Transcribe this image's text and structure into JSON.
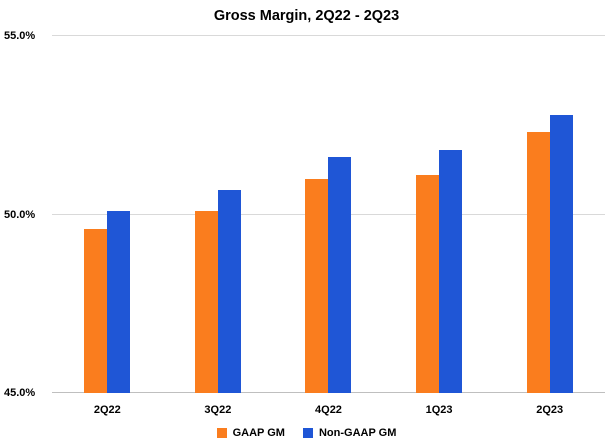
{
  "chart_data": {
    "type": "bar",
    "title": "Gross Margin, 2Q22 - 2Q23",
    "categories": [
      "2Q22",
      "3Q22",
      "4Q22",
      "1Q23",
      "2Q23"
    ],
    "series": [
      {
        "name": "GAAP GM",
        "color": "#FA7D1E",
        "values": [
          49.6,
          50.1,
          51.0,
          51.1,
          52.3
        ]
      },
      {
        "name": "Non-GAAP GM",
        "color": "#1F56D6",
        "values": [
          50.1,
          50.7,
          51.6,
          51.8,
          52.8
        ]
      }
    ],
    "xlabel": "",
    "ylabel": "",
    "ylim": [
      45.0,
      55.0
    ],
    "yticks": [
      45.0,
      50.0,
      55.0
    ],
    "ytick_labels": [
      "45.0%",
      "50.0%",
      "55.0%"
    ],
    "grid": true,
    "legend_position": "bottom"
  }
}
